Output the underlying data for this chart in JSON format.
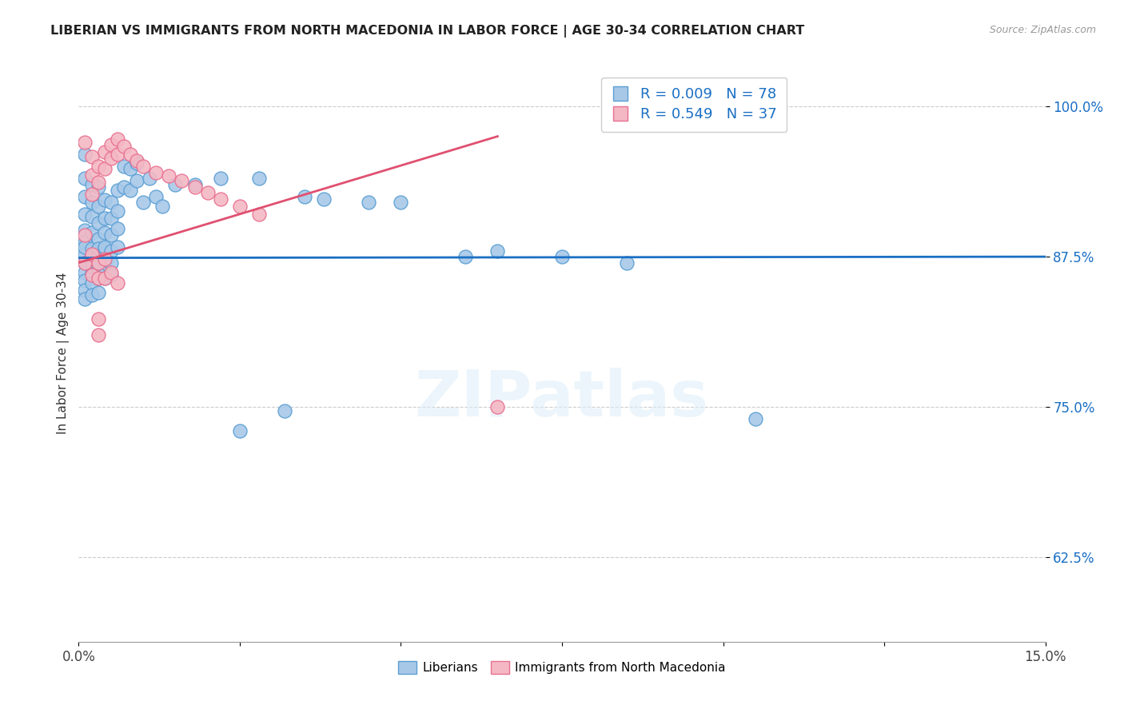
{
  "title": "LIBERIAN VS IMMIGRANTS FROM NORTH MACEDONIA IN LABOR FORCE | AGE 30-34 CORRELATION CHART",
  "source": "Source: ZipAtlas.com",
  "xlabel": "",
  "ylabel": "In Labor Force | Age 30-34",
  "xlim": [
    0.0,
    0.15
  ],
  "ylim": [
    0.555,
    1.035
  ],
  "yticks": [
    0.625,
    0.75,
    0.875,
    1.0
  ],
  "ytick_labels": [
    "62.5%",
    "75.0%",
    "87.5%",
    "100.0%"
  ],
  "xticks": [
    0.0,
    0.15
  ],
  "xtick_labels": [
    "0.0%",
    "15.0%"
  ],
  "blue_R": 0.009,
  "blue_N": 78,
  "pink_R": 0.549,
  "pink_N": 37,
  "blue_color": "#a8c8e8",
  "pink_color": "#f4b8c4",
  "blue_edge_color": "#5a9fd4",
  "pink_edge_color": "#e87090",
  "blue_line_color": "#1a6fc4",
  "pink_line_color": "#e05070",
  "background_color": "#ffffff",
  "watermark_text": "ZIPatlas",
  "legend_label_blue": "Liberians",
  "legend_label_pink": "Immigrants from North Macedonia",
  "blue_scatter": [
    [
      0.001,
      0.96
    ],
    [
      0.001,
      0.94
    ],
    [
      0.001,
      0.925
    ],
    [
      0.001,
      0.91
    ],
    [
      0.001,
      0.897
    ],
    [
      0.001,
      0.887
    ],
    [
      0.001,
      0.877
    ],
    [
      0.001,
      0.87
    ],
    [
      0.001,
      0.862
    ],
    [
      0.001,
      0.855
    ],
    [
      0.001,
      0.847
    ],
    [
      0.001,
      0.84
    ],
    [
      0.001,
      0.883
    ],
    [
      0.002,
      0.935
    ],
    [
      0.002,
      0.92
    ],
    [
      0.002,
      0.908
    ],
    [
      0.002,
      0.895
    ],
    [
      0.002,
      0.882
    ],
    [
      0.002,
      0.873
    ],
    [
      0.002,
      0.862
    ],
    [
      0.002,
      0.853
    ],
    [
      0.002,
      0.843
    ],
    [
      0.002,
      0.875
    ],
    [
      0.002,
      0.867
    ],
    [
      0.003,
      0.933
    ],
    [
      0.003,
      0.917
    ],
    [
      0.003,
      0.903
    ],
    [
      0.003,
      0.89
    ],
    [
      0.003,
      0.878
    ],
    [
      0.003,
      0.865
    ],
    [
      0.003,
      0.882
    ],
    [
      0.003,
      0.87
    ],
    [
      0.003,
      0.857
    ],
    [
      0.003,
      0.845
    ],
    [
      0.004,
      0.922
    ],
    [
      0.004,
      0.907
    ],
    [
      0.004,
      0.895
    ],
    [
      0.004,
      0.882
    ],
    [
      0.004,
      0.87
    ],
    [
      0.004,
      0.857
    ],
    [
      0.004,
      0.883
    ],
    [
      0.004,
      0.873
    ],
    [
      0.005,
      0.92
    ],
    [
      0.005,
      0.907
    ],
    [
      0.005,
      0.893
    ],
    [
      0.005,
      0.88
    ],
    [
      0.005,
      0.87
    ],
    [
      0.005,
      0.86
    ],
    [
      0.006,
      0.93
    ],
    [
      0.006,
      0.913
    ],
    [
      0.006,
      0.898
    ],
    [
      0.006,
      0.883
    ],
    [
      0.007,
      0.95
    ],
    [
      0.007,
      0.933
    ],
    [
      0.008,
      0.948
    ],
    [
      0.008,
      0.93
    ],
    [
      0.009,
      0.953
    ],
    [
      0.009,
      0.938
    ],
    [
      0.01,
      0.92
    ],
    [
      0.011,
      0.94
    ],
    [
      0.012,
      0.925
    ],
    [
      0.013,
      0.917
    ],
    [
      0.015,
      0.935
    ],
    [
      0.018,
      0.935
    ],
    [
      0.022,
      0.94
    ],
    [
      0.028,
      0.94
    ],
    [
      0.035,
      0.925
    ],
    [
      0.038,
      0.923
    ],
    [
      0.045,
      0.92
    ],
    [
      0.05,
      0.92
    ],
    [
      0.06,
      0.875
    ],
    [
      0.065,
      0.88
    ],
    [
      0.075,
      0.875
    ],
    [
      0.085,
      0.87
    ],
    [
      0.098,
      1.0
    ],
    [
      0.105,
      0.74
    ],
    [
      0.025,
      0.73
    ],
    [
      0.032,
      0.747
    ]
  ],
  "pink_scatter": [
    [
      0.001,
      0.97
    ],
    [
      0.002,
      0.958
    ],
    [
      0.002,
      0.943
    ],
    [
      0.002,
      0.927
    ],
    [
      0.003,
      0.95
    ],
    [
      0.003,
      0.937
    ],
    [
      0.004,
      0.962
    ],
    [
      0.004,
      0.948
    ],
    [
      0.005,
      0.968
    ],
    [
      0.005,
      0.957
    ],
    [
      0.006,
      0.973
    ],
    [
      0.006,
      0.96
    ],
    [
      0.007,
      0.967
    ],
    [
      0.008,
      0.96
    ],
    [
      0.009,
      0.955
    ],
    [
      0.01,
      0.95
    ],
    [
      0.012,
      0.945
    ],
    [
      0.014,
      0.942
    ],
    [
      0.016,
      0.938
    ],
    [
      0.018,
      0.933
    ],
    [
      0.02,
      0.928
    ],
    [
      0.022,
      0.923
    ],
    [
      0.025,
      0.917
    ],
    [
      0.028,
      0.91
    ],
    [
      0.001,
      0.893
    ],
    [
      0.001,
      0.87
    ],
    [
      0.002,
      0.877
    ],
    [
      0.002,
      0.86
    ],
    [
      0.003,
      0.87
    ],
    [
      0.003,
      0.857
    ],
    [
      0.004,
      0.873
    ],
    [
      0.004,
      0.857
    ],
    [
      0.005,
      0.862
    ],
    [
      0.006,
      0.853
    ],
    [
      0.003,
      0.823
    ],
    [
      0.003,
      0.81
    ],
    [
      0.065,
      0.75
    ]
  ],
  "blue_trendline_x": [
    0.0,
    0.15
  ],
  "blue_trendline_y": [
    0.874,
    0.875
  ],
  "pink_trendline_x": [
    0.0,
    0.065
  ],
  "pink_trendline_y": [
    0.87,
    0.975
  ]
}
